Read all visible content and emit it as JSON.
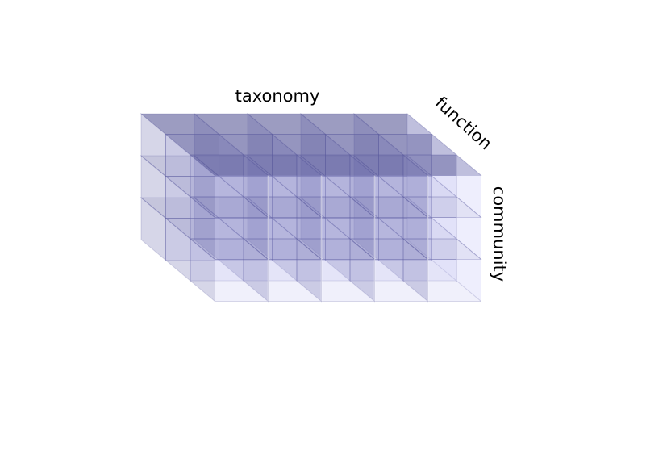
{
  "diagram": {
    "axes": {
      "x_label": "taxonomy",
      "y_label": "function",
      "z_label": "community"
    },
    "grid": {
      "x_count": 5,
      "y_count": 3,
      "z_count": 3
    },
    "colors": {
      "top": "#4b4b8e",
      "front": "#b9b9ee",
      "side": "#6c6cae",
      "edge": "#5a5aa0",
      "highlight": "#ececff"
    }
  }
}
